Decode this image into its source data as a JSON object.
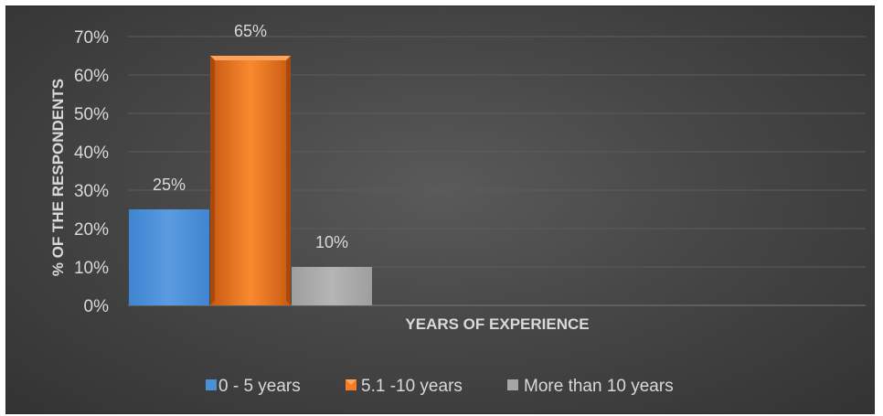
{
  "chart_data": {
    "type": "bar",
    "xlabel": "YEARS OF EXPERIENCE",
    "ylabel": "% OF THE RESPONDENTS",
    "ylim": [
      0,
      70
    ],
    "yticks": [
      "0%",
      "10%",
      "20%",
      "30%",
      "40%",
      "50%",
      "60%",
      "70%"
    ],
    "grid": true,
    "legend_position": "bottom",
    "series": [
      {
        "name": "0 - 5 years",
        "value": 25,
        "label": "25%",
        "color": "#4a90d9"
      },
      {
        "name": "5.1 -10 years",
        "value": 65,
        "label": "65%",
        "color": "#f07e26"
      },
      {
        "name": "More than 10 years",
        "value": 10,
        "label": "10%",
        "color": "#a6a6a6"
      }
    ]
  }
}
